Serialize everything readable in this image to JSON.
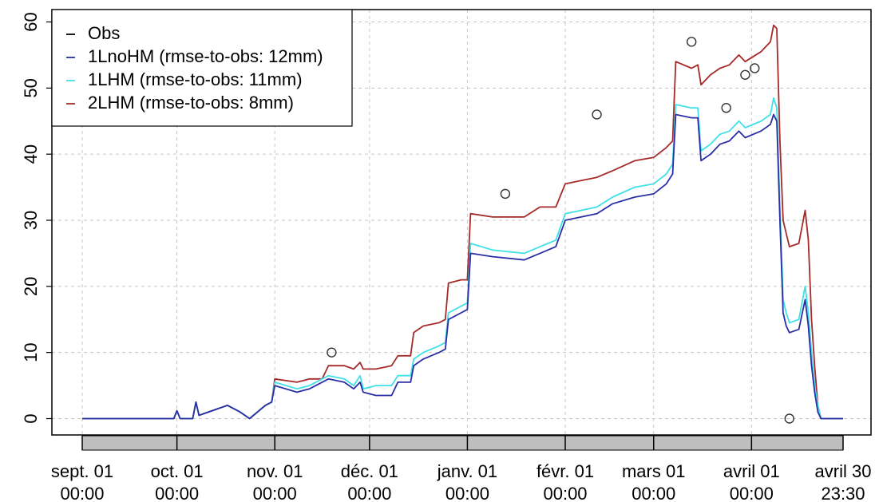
{
  "chart_data": {
    "type": "line",
    "y_ticks": [
      "0",
      "10",
      "20",
      "30",
      "40",
      "50",
      "60"
    ],
    "ylim": [
      -2.5,
      62.5
    ],
    "grid": true,
    "legend_position": "top-left",
    "x_ticks": [
      {
        "day": 0,
        "line1": "sept. 01",
        "line2": "00:00"
      },
      {
        "day": 30,
        "line1": "oct. 01",
        "line2": "00:00"
      },
      {
        "day": 61,
        "line1": "nov. 01",
        "line2": "00:00"
      },
      {
        "day": 91,
        "line1": "déc. 01",
        "line2": "00:00"
      },
      {
        "day": 122,
        "line1": "janv. 01",
        "line2": "00:00"
      },
      {
        "day": 153,
        "line1": "févr. 01",
        "line2": "00:00"
      },
      {
        "day": 181,
        "line1": "mars 01",
        "line2": "00:00"
      },
      {
        "day": 212,
        "line1": "avril 01",
        "line2": "00:00"
      },
      {
        "day": 241,
        "line1": "avril 30",
        "line2": "23:30"
      }
    ],
    "legend": [
      {
        "label": "Obs",
        "color": "#000000"
      },
      {
        "label": "1LnoHM (rmse-to-obs: 12mm)",
        "color": "#2b2fa6"
      },
      {
        "label": "1LHM (rmse-to-obs: 11mm)",
        "color": "#40e0e8"
      },
      {
        "label": "2LHM (rmse-to-obs: 8mm)",
        "color": "#a52a2a"
      }
    ],
    "observations": [
      {
        "x": 79,
        "y": 10
      },
      {
        "x": 134,
        "y": 34
      },
      {
        "x": 163,
        "y": 46
      },
      {
        "x": 193,
        "y": 57
      },
      {
        "x": 204,
        "y": 47
      },
      {
        "x": 210,
        "y": 52
      },
      {
        "x": 213,
        "y": 53
      },
      {
        "x": 224,
        "y": 0
      }
    ],
    "series": [
      {
        "name": "2LHM (rmse-to-obs: 8mm)",
        "color": "#a52a2a",
        "points": [
          [
            0,
            0
          ],
          [
            29,
            0
          ],
          [
            30,
            1.2
          ],
          [
            31,
            0
          ],
          [
            35,
            0
          ],
          [
            36,
            2.5
          ],
          [
            37,
            0.5
          ],
          [
            46,
            2
          ],
          [
            50,
            1
          ],
          [
            53,
            0
          ],
          [
            58,
            2
          ],
          [
            60,
            2.5
          ],
          [
            61,
            6
          ],
          [
            68,
            5.5
          ],
          [
            72,
            6
          ],
          [
            76,
            6
          ],
          [
            78,
            8
          ],
          [
            83,
            8
          ],
          [
            86,
            7.5
          ],
          [
            88,
            8.5
          ],
          [
            89,
            7.5
          ],
          [
            93,
            7.5
          ],
          [
            98,
            8
          ],
          [
            100,
            9.5
          ],
          [
            104,
            9.5
          ],
          [
            105,
            13
          ],
          [
            108,
            14
          ],
          [
            113,
            14.5
          ],
          [
            115,
            15
          ],
          [
            116,
            20.5
          ],
          [
            120,
            21
          ],
          [
            122,
            21
          ],
          [
            123,
            31
          ],
          [
            130,
            30.5
          ],
          [
            140,
            30.5
          ],
          [
            145,
            32
          ],
          [
            150,
            32
          ],
          [
            153,
            35.5
          ],
          [
            158,
            36
          ],
          [
            163,
            36.5
          ],
          [
            168,
            37.5
          ],
          [
            175,
            39
          ],
          [
            181,
            39.5
          ],
          [
            185,
            41
          ],
          [
            187,
            42
          ],
          [
            188,
            54
          ],
          [
            193,
            53
          ],
          [
            195,
            53.5
          ],
          [
            196,
            50.5
          ],
          [
            199,
            52
          ],
          [
            202,
            53
          ],
          [
            205,
            53.5
          ],
          [
            208,
            55
          ],
          [
            210,
            54
          ],
          [
            215,
            55.5
          ],
          [
            218,
            57
          ],
          [
            219,
            59.5
          ],
          [
            220,
            59
          ],
          [
            221,
            42
          ],
          [
            222,
            30
          ],
          [
            223,
            28
          ],
          [
            224,
            26
          ],
          [
            227,
            26.5
          ],
          [
            229,
            31.5
          ],
          [
            230,
            27
          ],
          [
            231,
            15
          ],
          [
            232,
            8
          ],
          [
            233,
            2
          ],
          [
            234,
            0
          ],
          [
            241,
            0
          ]
        ]
      },
      {
        "name": "1LHM (rmse-to-obs: 11mm)",
        "color": "#40e0e8",
        "points": [
          [
            0,
            0
          ],
          [
            29,
            0
          ],
          [
            30,
            1.2
          ],
          [
            31,
            0
          ],
          [
            35,
            0
          ],
          [
            36,
            2.5
          ],
          [
            37,
            0.5
          ],
          [
            46,
            2
          ],
          [
            50,
            1
          ],
          [
            53,
            0
          ],
          [
            58,
            2
          ],
          [
            60,
            2.5
          ],
          [
            61,
            5.5
          ],
          [
            68,
            4.5
          ],
          [
            72,
            5
          ],
          [
            78,
            6.5
          ],
          [
            83,
            6
          ],
          [
            86,
            5
          ],
          [
            88,
            6.5
          ],
          [
            89,
            4.5
          ],
          [
            93,
            5
          ],
          [
            98,
            5
          ],
          [
            100,
            6.5
          ],
          [
            104,
            6.5
          ],
          [
            105,
            9
          ],
          [
            108,
            10
          ],
          [
            113,
            11
          ],
          [
            115,
            11.5
          ],
          [
            116,
            16
          ],
          [
            120,
            17
          ],
          [
            122,
            17.5
          ],
          [
            123,
            26.5
          ],
          [
            130,
            25.5
          ],
          [
            140,
            25
          ],
          [
            145,
            26
          ],
          [
            150,
            27
          ],
          [
            153,
            31
          ],
          [
            158,
            31.5
          ],
          [
            163,
            32
          ],
          [
            168,
            33.5
          ],
          [
            175,
            35
          ],
          [
            181,
            35.5
          ],
          [
            185,
            37
          ],
          [
            187,
            38.5
          ],
          [
            188,
            47.5
          ],
          [
            193,
            47
          ],
          [
            195,
            47
          ],
          [
            196,
            40.5
          ],
          [
            199,
            41.5
          ],
          [
            202,
            43
          ],
          [
            205,
            43.5
          ],
          [
            208,
            45
          ],
          [
            210,
            44
          ],
          [
            215,
            45
          ],
          [
            218,
            46
          ],
          [
            219,
            48.5
          ],
          [
            220,
            47
          ],
          [
            221,
            32
          ],
          [
            222,
            18
          ],
          [
            223,
            16
          ],
          [
            224,
            14.5
          ],
          [
            227,
            15
          ],
          [
            229,
            20
          ],
          [
            230,
            16
          ],
          [
            231,
            10
          ],
          [
            232,
            5
          ],
          [
            233,
            2
          ],
          [
            234,
            0
          ],
          [
            241,
            0
          ]
        ]
      },
      {
        "name": "1LnoHM (rmse-to-obs: 12mm)",
        "color": "#2b2fa6",
        "points": [
          [
            0,
            0
          ],
          [
            29,
            0
          ],
          [
            30,
            1.2
          ],
          [
            31,
            0
          ],
          [
            35,
            0
          ],
          [
            36,
            2.5
          ],
          [
            37,
            0.5
          ],
          [
            46,
            2
          ],
          [
            50,
            1
          ],
          [
            53,
            0
          ],
          [
            58,
            2
          ],
          [
            60,
            2.5
          ],
          [
            61,
            5
          ],
          [
            68,
            4
          ],
          [
            72,
            4.5
          ],
          [
            78,
            6
          ],
          [
            83,
            5.5
          ],
          [
            86,
            4.5
          ],
          [
            88,
            5.5
          ],
          [
            89,
            4
          ],
          [
            93,
            3.5
          ],
          [
            98,
            3.5
          ],
          [
            100,
            5.5
          ],
          [
            104,
            5.5
          ],
          [
            105,
            8
          ],
          [
            108,
            9
          ],
          [
            113,
            10
          ],
          [
            115,
            10.5
          ],
          [
            116,
            15
          ],
          [
            120,
            16
          ],
          [
            122,
            16.5
          ],
          [
            123,
            25
          ],
          [
            130,
            24.5
          ],
          [
            140,
            24
          ],
          [
            145,
            25
          ],
          [
            150,
            26
          ],
          [
            153,
            30
          ],
          [
            158,
            30.5
          ],
          [
            163,
            31
          ],
          [
            168,
            32.5
          ],
          [
            175,
            33.5
          ],
          [
            181,
            34
          ],
          [
            185,
            35.5
          ],
          [
            187,
            37
          ],
          [
            188,
            46
          ],
          [
            193,
            45.5
          ],
          [
            195,
            45.5
          ],
          [
            196,
            39
          ],
          [
            199,
            40
          ],
          [
            202,
            41.5
          ],
          [
            205,
            42
          ],
          [
            208,
            43.5
          ],
          [
            210,
            42.5
          ],
          [
            215,
            43.5
          ],
          [
            218,
            44.5
          ],
          [
            219,
            46
          ],
          [
            220,
            45
          ],
          [
            221,
            30
          ],
          [
            222,
            16
          ],
          [
            223,
            14
          ],
          [
            224,
            13
          ],
          [
            227,
            13.5
          ],
          [
            229,
            18
          ],
          [
            230,
            14
          ],
          [
            231,
            8
          ],
          [
            232,
            4
          ],
          [
            233,
            1
          ],
          [
            234,
            0
          ],
          [
            241,
            0
          ]
        ]
      }
    ]
  }
}
